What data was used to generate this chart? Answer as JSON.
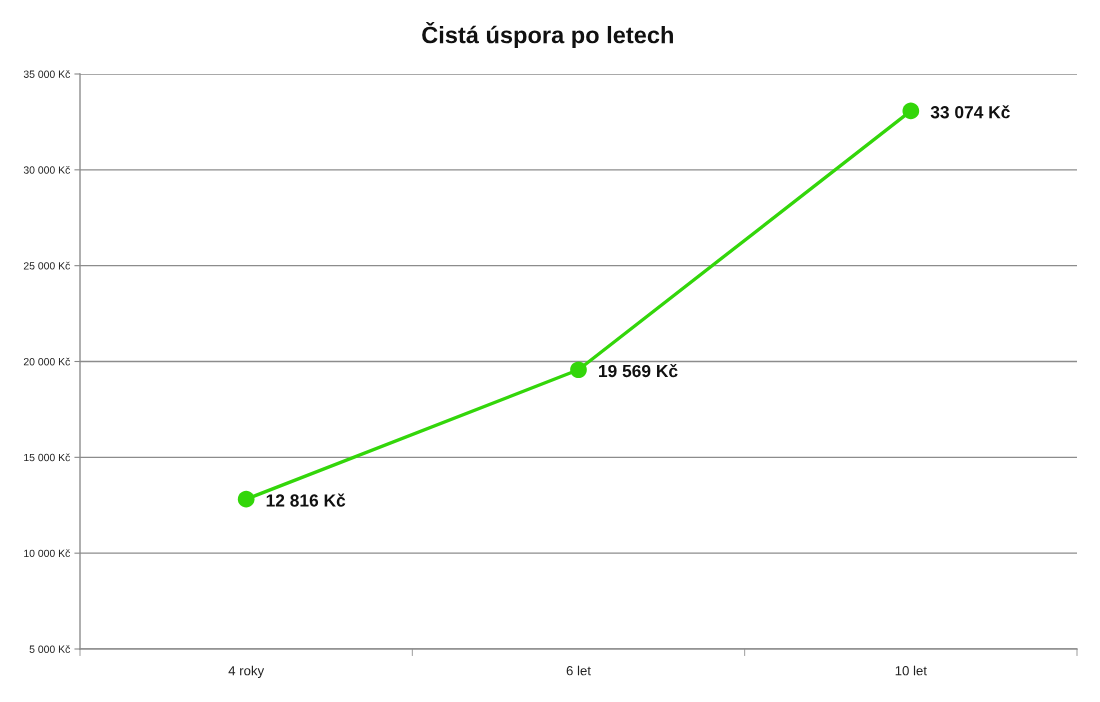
{
  "chart_data": {
    "type": "line",
    "title": "Čistá úspora po letech",
    "categories": [
      "4 roky",
      "6 let",
      "10 let"
    ],
    "series": [
      {
        "color": "#33d60a",
        "values": [
          12816,
          19569,
          33074
        ],
        "value_labels": [
          "12 816 Kč",
          "19 569 Kč",
          "33 074 Kč"
        ]
      }
    ],
    "ylim": [
      5000,
      35000
    ],
    "yticks": [
      {
        "value": 5000,
        "label": "5 000 Kč"
      },
      {
        "value": 10000,
        "label": "10 000 Kč"
      },
      {
        "value": 15000,
        "label": "15 000 Kč"
      },
      {
        "value": 20000,
        "label": "20 000 Kč"
      },
      {
        "value": 25000,
        "label": "25 000 Kč"
      },
      {
        "value": 30000,
        "label": "30 000 Kč"
      },
      {
        "value": 35000,
        "label": "35 000 Kč"
      }
    ],
    "grid": "y",
    "marker": "circle",
    "line_style": "solid"
  }
}
